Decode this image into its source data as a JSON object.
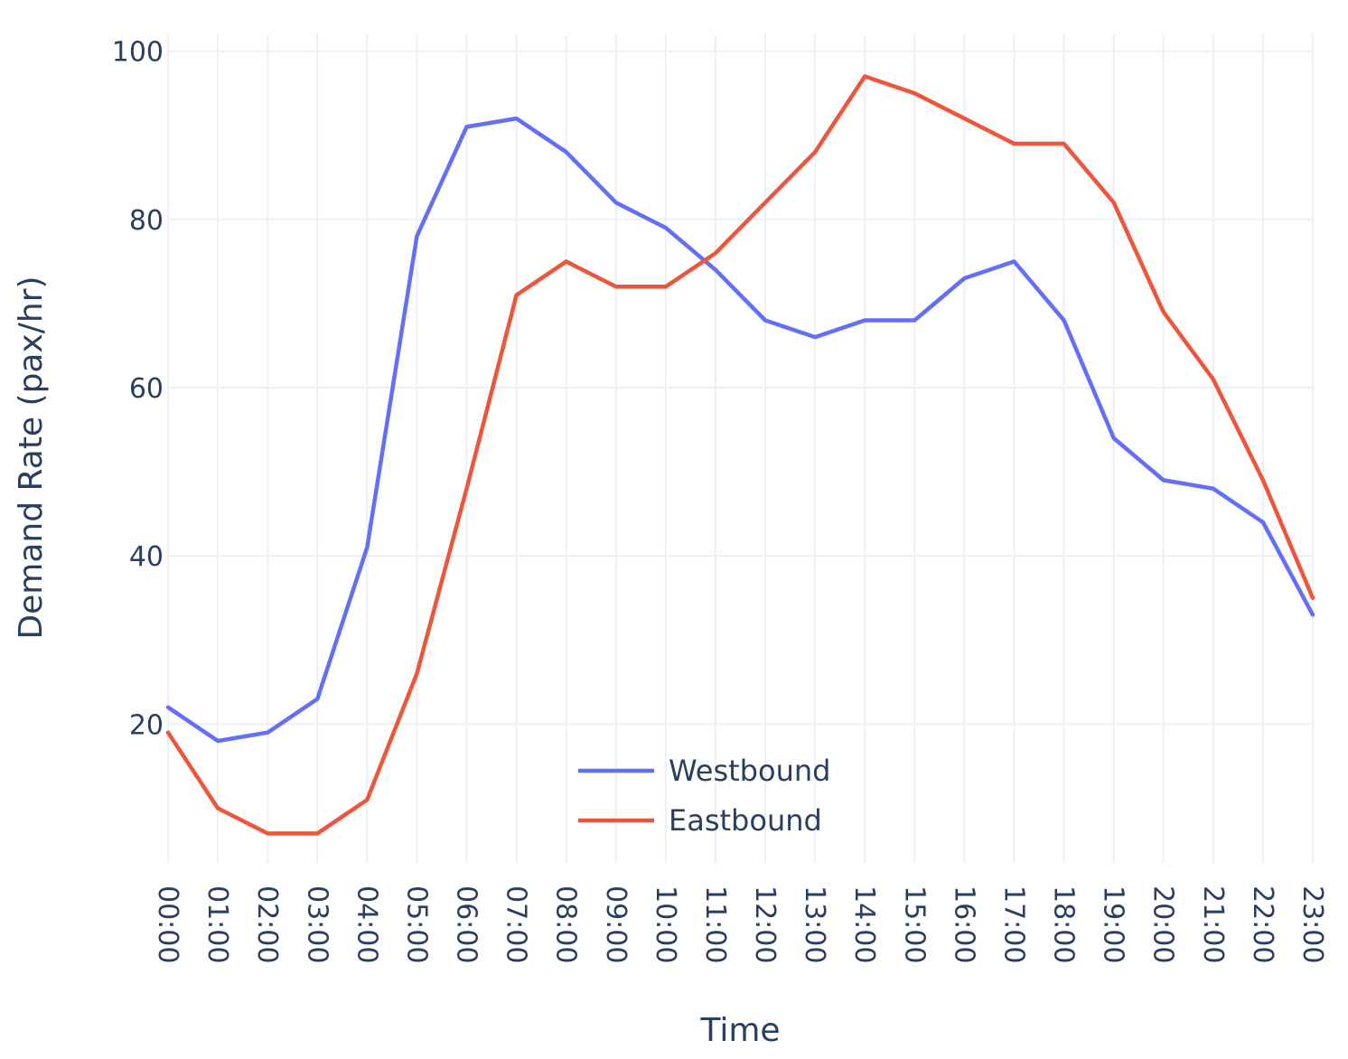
{
  "chart_data": {
    "type": "line",
    "xlabel": "Time",
    "ylabel": "Demand Rate (pax/hr)",
    "categories": [
      "00:00",
      "01:00",
      "02:00",
      "03:00",
      "04:00",
      "05:00",
      "06:00",
      "07:00",
      "08:00",
      "09:00",
      "10:00",
      "11:00",
      "12:00",
      "13:00",
      "14:00",
      "15:00",
      "16:00",
      "17:00",
      "18:00",
      "19:00",
      "20:00",
      "21:00",
      "22:00",
      "23:00"
    ],
    "y_ticks": [
      20,
      40,
      60,
      80,
      100
    ],
    "ylim": [
      3.5,
      102
    ],
    "grid": true,
    "legend_position": "bottom-center",
    "series": [
      {
        "name": "Westbound",
        "color": "#636efa",
        "values": [
          22,
          18,
          19,
          23,
          41,
          78,
          91,
          92,
          88,
          82,
          79,
          74,
          68,
          66,
          68,
          68,
          73,
          75,
          68,
          54,
          49,
          48,
          44,
          33
        ]
      },
      {
        "name": "Eastbound",
        "color": "#ef553b",
        "values": [
          19,
          10,
          7,
          7,
          11,
          26,
          48,
          71,
          75,
          72,
          72,
          76,
          82,
          88,
          97,
          95,
          92,
          89,
          89,
          82,
          69,
          61,
          49,
          35
        ]
      }
    ]
  }
}
